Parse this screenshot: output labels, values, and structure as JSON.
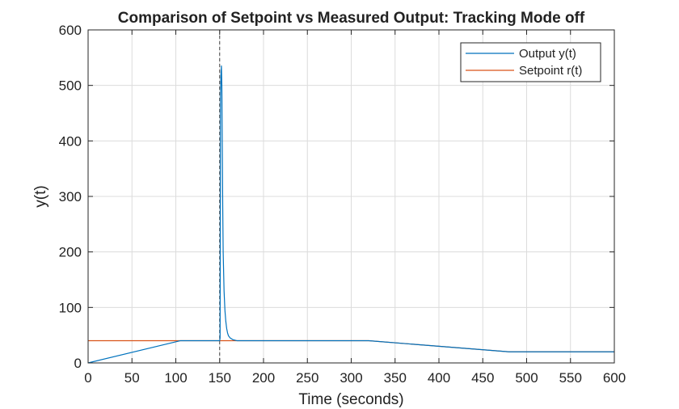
{
  "chart_data": {
    "type": "line",
    "title": "Comparison of Setpoint vs Measured Output: Tracking Mode off",
    "xlabel": "Time (seconds)",
    "ylabel": "y(t)",
    "xlim": [
      0,
      600
    ],
    "ylim": [
      0,
      600
    ],
    "xticks": [
      0,
      50,
      100,
      150,
      200,
      250,
      300,
      350,
      400,
      450,
      500,
      550,
      600
    ],
    "yticks": [
      0,
      100,
      200,
      300,
      400,
      500,
      600
    ],
    "grid": true,
    "legend_location": "top-right",
    "vline": 150,
    "series": [
      {
        "name": "Output y(t)",
        "color": "#0072BD",
        "x": [
          0,
          105,
          150,
          150.5,
          151,
          151.5,
          152,
          152.5,
          153,
          153.5,
          154,
          155,
          156,
          157,
          158,
          159,
          160,
          162,
          165,
          170,
          320,
          480,
          600
        ],
        "y": [
          0,
          40,
          40,
          45,
          480,
          520,
          535,
          500,
          390,
          280,
          200,
          130,
          95,
          75,
          62,
          54,
          49,
          45,
          42,
          40,
          40,
          20,
          20
        ]
      },
      {
        "name": "Setpoint r(t)",
        "color": "#D95319",
        "x": [
          0,
          320,
          480,
          600
        ],
        "y": [
          40,
          40,
          20,
          20
        ]
      }
    ]
  }
}
